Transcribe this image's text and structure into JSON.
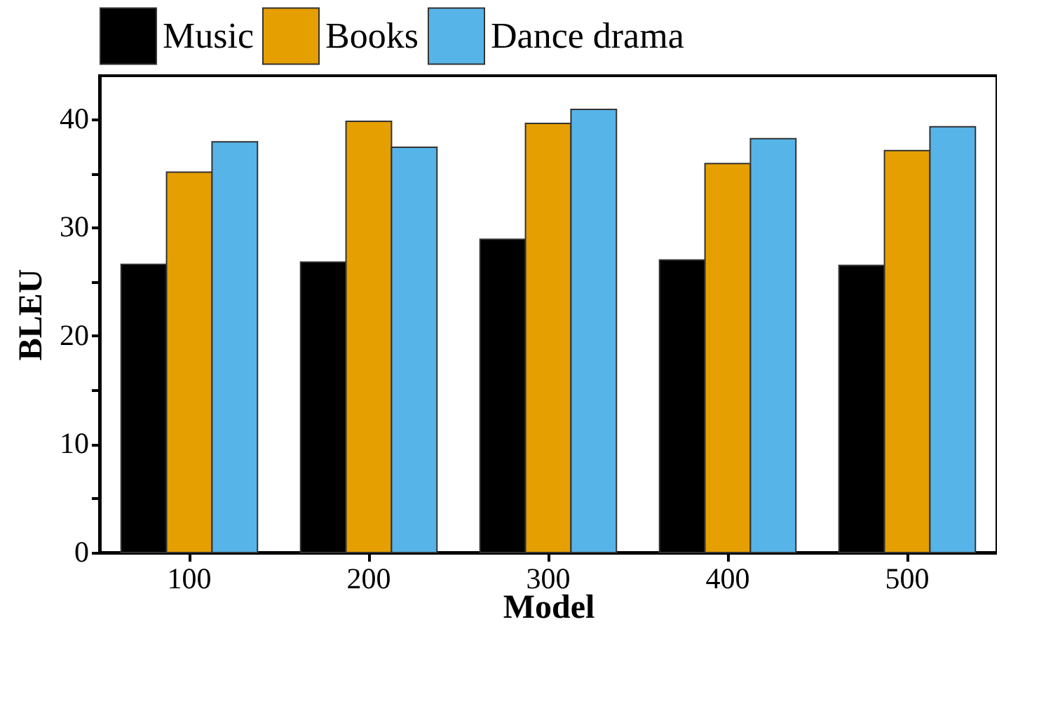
{
  "chart_data": {
    "type": "bar",
    "xlabel": "Model",
    "ylabel": "BLEU",
    "categories": [
      "100",
      "200",
      "300",
      "400",
      "500"
    ],
    "series": [
      {
        "name": "Music",
        "color": "#000000",
        "values": [
          26.6,
          26.8,
          28.9,
          27.0,
          26.5
        ]
      },
      {
        "name": "Books",
        "color": "#e69f00",
        "values": [
          35.1,
          39.8,
          39.6,
          35.9,
          37.1
        ]
      },
      {
        "name": "Dance drama",
        "color": "#56b4e9",
        "values": [
          37.9,
          37.4,
          40.9,
          38.2,
          39.3
        ]
      }
    ],
    "ylim": [
      0,
      44
    ],
    "yticks": [
      0,
      {
        "value": 5,
        "label": null
      },
      10,
      {
        "value": 15,
        "label": null
      },
      20,
      {
        "value": 25,
        "label": null
      },
      30,
      {
        "value": 35,
        "label": null
      },
      40
    ],
    "grid": false,
    "legend": "top"
  }
}
